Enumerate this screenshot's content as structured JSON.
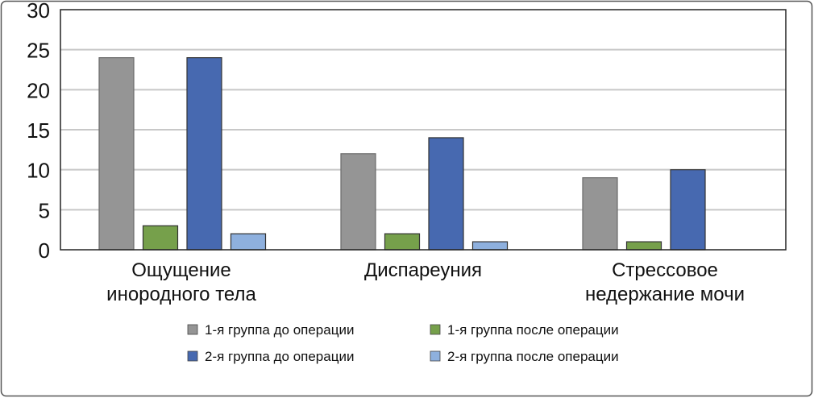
{
  "chart_data": {
    "type": "bar",
    "title": "",
    "xlabel": "",
    "ylabel": "",
    "ylim": [
      0,
      30
    ],
    "yticks": [
      "0",
      "5",
      "10",
      "15",
      "20",
      "25",
      "30"
    ],
    "grid": true,
    "legend_position": "bottom",
    "categories": [
      [
        "Ощущение",
        "инородного тела"
      ],
      [
        "Диспареуния"
      ],
      [
        "Стрессовое",
        "недержание мочи"
      ]
    ],
    "series": [
      {
        "name": "1-я группа до операции",
        "color": "#959595",
        "values": [
          24,
          12,
          9
        ]
      },
      {
        "name": "1-я группа после операции",
        "color": "#76a04b",
        "values": [
          3,
          2,
          1
        ]
      },
      {
        "name": "2-я группа до операции",
        "color": "#4769b0",
        "values": [
          24,
          14,
          10
        ]
      },
      {
        "name": "2-я группа после операции",
        "color": "#8eb0de",
        "values": [
          2,
          1,
          0
        ]
      }
    ]
  }
}
